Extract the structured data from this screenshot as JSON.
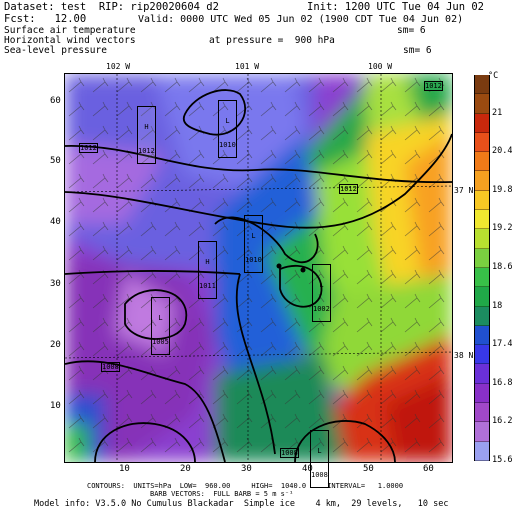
{
  "header": {
    "dataset_line": "Dataset: test  RIP: rip20020604 d2",
    "init_line": "Init: 1200 UTC Tue 04 Jun 02",
    "fcst_line": "Fcst:   12.00",
    "valid_line": "Valid: 0000 UTC Wed 05 Jun 02 (1900 CDT Tue 04 Jun 02)",
    "field1": "Surface air temperature",
    "sm1": "sm= 6",
    "field2": "Horizontal wind vectors",
    "pressure": "at pressure =  900 hPa",
    "field3": "Sea-level pressure",
    "sm2": "sm= 6"
  },
  "top_lon_labels": [
    "102 W",
    "101 W",
    "100 W"
  ],
  "right_lat_labels": [
    "37 N",
    "38 N"
  ],
  "x_ticks": [
    "10",
    "20",
    "30",
    "40",
    "50",
    "60"
  ],
  "y_ticks": [
    "60",
    "50",
    "40",
    "30",
    "20",
    "10"
  ],
  "colorbar": {
    "unit": "°C",
    "labels": [
      "21",
      "20.4",
      "19.8",
      "19.2",
      "18.6",
      "18",
      "17.4",
      "16.8",
      "16.2",
      "15.6"
    ],
    "colors": [
      "#7a3b10",
      "#9a4a10",
      "#c8280c",
      "#e8501a",
      "#f07a18",
      "#f5a020",
      "#f8c824",
      "#f0e830",
      "#b8e030",
      "#7ad040",
      "#38c048",
      "#20a848",
      "#1c8c60",
      "#2050d0",
      "#3838e8",
      "#6a30d8",
      "#8830c8",
      "#a048c8",
      "#b070d8",
      "#9aa0f0"
    ]
  },
  "pressure_labels": [
    {
      "kind": "H",
      "value": "1012"
    },
    {
      "kind": "L",
      "value": "1010"
    },
    {
      "kind": "",
      "value": "1012"
    },
    {
      "kind": "",
      "value": "1012"
    },
    {
      "kind": "",
      "value": "1012"
    },
    {
      "kind": "L",
      "value": "1010"
    },
    {
      "kind": "H",
      "value": "1011"
    },
    {
      "kind": "L",
      "value": "1002"
    },
    {
      "kind": "L",
      "value": "1005"
    },
    {
      "kind": "",
      "value": "1008"
    },
    {
      "kind": "L",
      "value": "1008"
    },
    {
      "kind": "",
      "value": "1008"
    }
  ],
  "footer": {
    "contours": "CONTOURS:  UNITS=hPa  LOW=  960.00     HIGH=  1040.0     INTERVAL=   1.0000",
    "barb": "BARB VECTORS:  FULL BARB = 5 m s⁻¹",
    "model": "Model info: V3.5.0 No Cumulus Blackadar  Simple ice    4 km,  29 levels,   10 sec"
  }
}
